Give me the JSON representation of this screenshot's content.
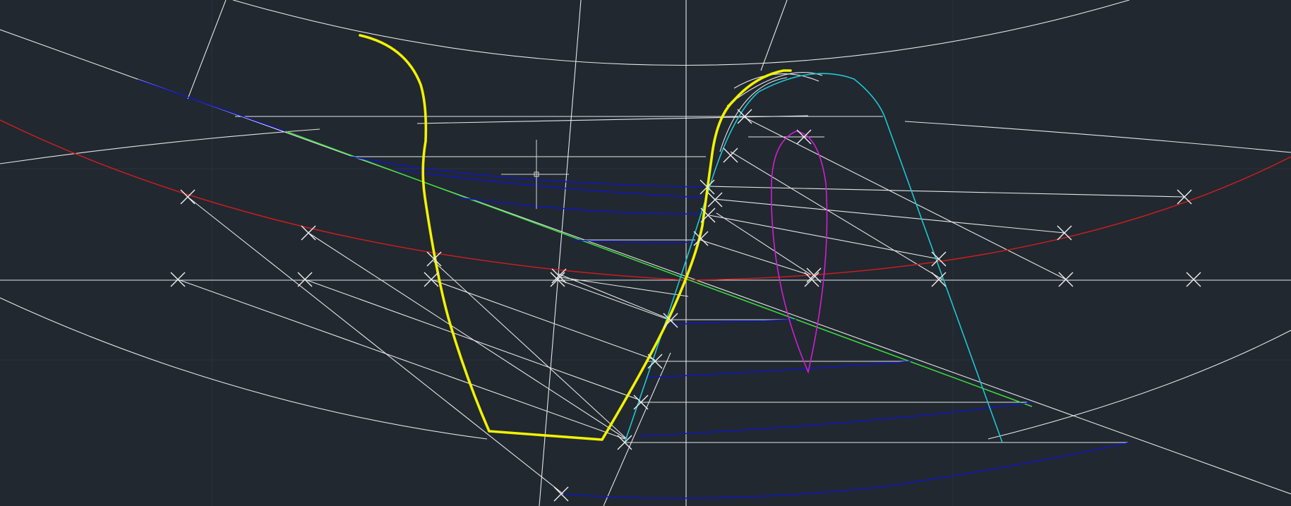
{
  "app": {
    "type": "CAD drawing viewport"
  },
  "colors": {
    "background": "#212830",
    "grid": "#2a323c",
    "construction": "#e6e6e6",
    "profile": "#f2f200",
    "red_arc": "#c81e1e",
    "green_line": "#3ce03c",
    "blue_curves": "#1218b8",
    "cyan_curve": "#1ec8d2",
    "magenta_curve": "#d21ed2",
    "markers": "#eeeeee",
    "cursor": "#d8d8d8"
  },
  "icons": {
    "cursor": "crosshair-cursor-icon",
    "marker": "x-marker-icon"
  }
}
